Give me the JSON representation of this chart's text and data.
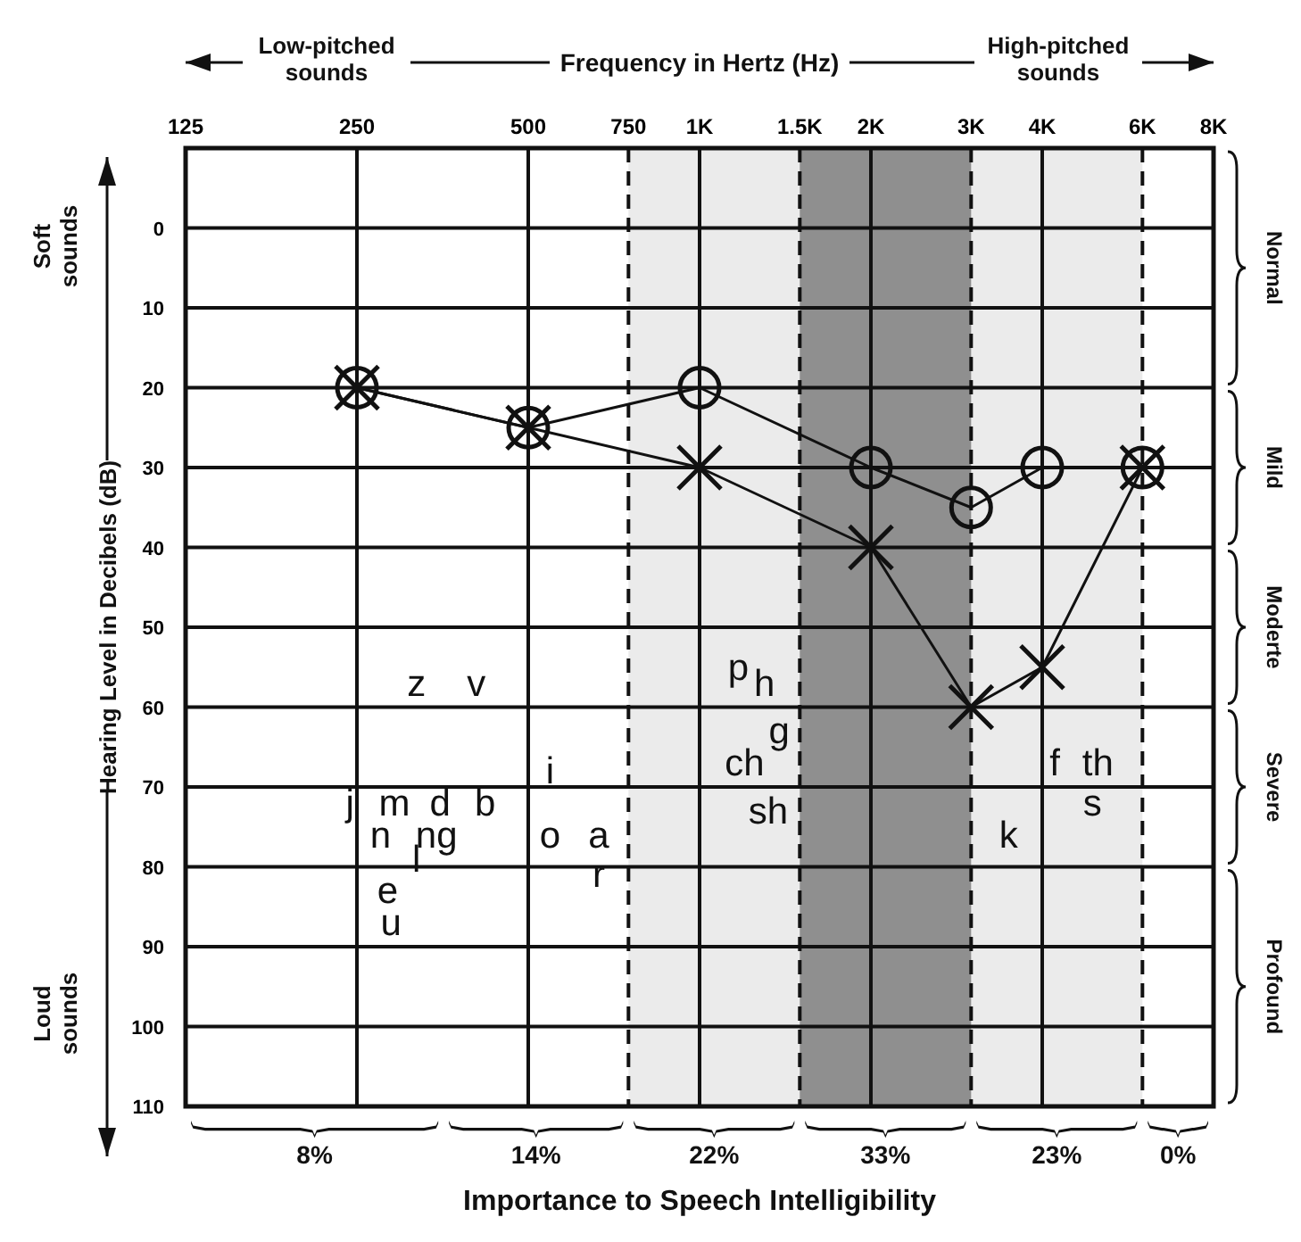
{
  "chart_data": {
    "type": "line",
    "xlabel": "Frequency in Hertz (Hz)",
    "ylabel": "Hearing Level in Decibels (dB)",
    "log": "x",
    "xlim": [
      125,
      8000
    ],
    "xticks": [
      125,
      250,
      500,
      750,
      {
        "value": 1000,
        "label": "1K"
      },
      {
        "value": 1500,
        "label": "1.5K"
      },
      {
        "value": 2000,
        "label": "2K"
      },
      {
        "value": 3000,
        "label": "3K"
      },
      {
        "value": 4000,
        "label": "4K"
      },
      {
        "value": 6000,
        "label": "6K"
      },
      {
        "value": 8000,
        "label": "8K"
      }
    ],
    "ylim": [
      110,
      -10
    ],
    "yticks": [
      0,
      10,
      20,
      30,
      40,
      50,
      60,
      70,
      80,
      90,
      100,
      110
    ],
    "grid": true,
    "line_style": "solid",
    "series": [
      {
        "color": "#111111",
        "marker": "circle",
        "x": [
          250,
          500,
          1000,
          2000,
          3000,
          4000,
          6000
        ],
        "values": [
          20,
          25,
          20,
          30,
          35,
          30,
          30
        ]
      },
      {
        "color": "#111111",
        "marker": "cross",
        "x": [
          250,
          500,
          1000,
          2000,
          3000,
          4000,
          6000
        ],
        "values": [
          20,
          25,
          30,
          40,
          60,
          55,
          30
        ]
      }
    ],
    "bands": [
      {
        "axis": "x",
        "from": 750,
        "to": 6000,
        "color": "#ebebeb"
      },
      {
        "axis": "x",
        "from": 1500,
        "to": 3000,
        "color": "#8f8f8f"
      }
    ],
    "annotations": [
      "Low-pitched sounds",
      "High-pitched sounds",
      "Soft sounds",
      "Loud sounds",
      "Importance to Speech Intelligibility",
      "Normal",
      "Mild",
      "Moderte",
      "Severe",
      "Profound",
      "8%",
      "14%",
      "22%",
      "33%",
      "23%",
      "0%",
      "z",
      "v",
      "j",
      "m",
      "d",
      "b",
      "n",
      "ng",
      "e",
      "l",
      "u",
      "i",
      "o",
      "a",
      "r",
      "p",
      "h",
      "g",
      "ch",
      "sh",
      "k",
      "f",
      "th",
      "s"
    ]
  }
}
